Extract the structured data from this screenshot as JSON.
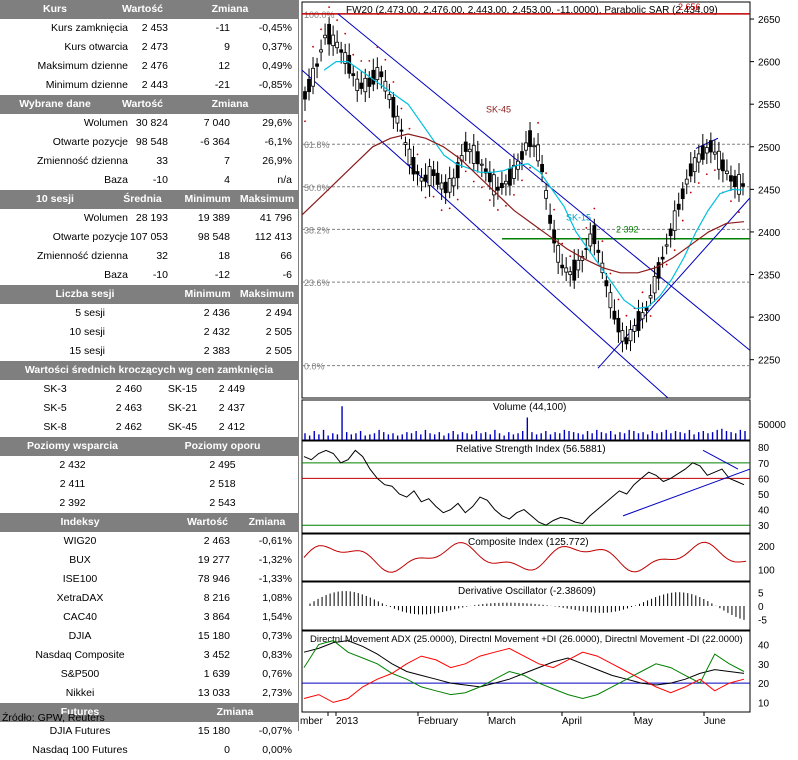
{
  "kursy": {
    "headers": [
      "Kurs",
      "Wartość",
      "Zmiana"
    ],
    "rows": [
      {
        "label": "Kurs zamknięcia",
        "value": "2 453",
        "change": "-11",
        "pct": "-0,45%"
      },
      {
        "label": "Kurs otwarcia",
        "value": "2 473",
        "change": "9",
        "pct": "0,37%"
      },
      {
        "label": "Maksimum dzienne",
        "value": "2 476",
        "change": "12",
        "pct": "0,49%"
      },
      {
        "label": "Minimum dzienne",
        "value": "2 443",
        "change": "-21",
        "pct": "-0,85%"
      }
    ]
  },
  "wybrane": {
    "headers": [
      "Wybrane dane",
      "Wartość",
      "Zmiana"
    ],
    "rows": [
      {
        "label": "Wolumen",
        "value": "30 824",
        "change": "7 040",
        "pct": "29,6%"
      },
      {
        "label": "Otwarte pozycje",
        "value": "98 548",
        "change": "-6 364",
        "pct": "-6,1%"
      },
      {
        "label": "Zmienność dzienna",
        "value": "33",
        "change": "7",
        "pct": "26,9%"
      },
      {
        "label": "Baza",
        "value": "-10",
        "change": "4",
        "pct": "n/a"
      }
    ]
  },
  "sesji10": {
    "headers": [
      "10 sesji",
      "Średnia",
      "Minimum",
      "Maksimum"
    ],
    "rows": [
      {
        "label": "Wolumen",
        "avg": "28 193",
        "min": "19 389",
        "max": "41 796"
      },
      {
        "label": "Otwarte pozycje",
        "avg": "107 053",
        "min": "98 548",
        "max": "112 413"
      },
      {
        "label": "Zmienność dzienna",
        "avg": "32",
        "min": "18",
        "max": "66"
      },
      {
        "label": "Baza",
        "avg": "-10",
        "min": "-12",
        "max": "-6"
      }
    ]
  },
  "liczba": {
    "headers": [
      "Liczba sesji",
      "Minimum",
      "Maksimum"
    ],
    "rows": [
      {
        "label": "5 sesji",
        "min": "2 436",
        "max": "2 494"
      },
      {
        "label": "10 sesji",
        "min": "2 432",
        "max": "2 505"
      },
      {
        "label": "15 sesji",
        "min": "2 383",
        "max": "2 505"
      }
    ]
  },
  "srednie": {
    "header": "Wartości średnich kroczących wg cen zamknięcia",
    "rows": [
      {
        "l1": "SK-3",
        "v1": "2 460",
        "l2": "SK-15",
        "v2": "2 449"
      },
      {
        "l1": "SK-5",
        "v1": "2 463",
        "l2": "SK-21",
        "v2": "2 437"
      },
      {
        "l1": "SK-8",
        "v1": "2 462",
        "l2": "SK-45",
        "v2": "2 412"
      }
    ]
  },
  "poziomy": {
    "headers": [
      "Poziomy wsparcia",
      "Poziomy oporu"
    ],
    "rows": [
      {
        "s": "2 432",
        "o": "2 495"
      },
      {
        "s": "2 411",
        "o": "2 518"
      },
      {
        "s": "2 392",
        "o": "2 543"
      }
    ]
  },
  "indeksy": {
    "headers": [
      "Indeksy",
      "Wartość",
      "Zmiana"
    ],
    "rows": [
      {
        "label": "WIG20",
        "value": "2 463",
        "pct": "-0,61%"
      },
      {
        "label": "BUX",
        "value": "19 277",
        "pct": "-1,32%"
      },
      {
        "label": "ISE100",
        "value": "78 946",
        "pct": "-1,33%"
      },
      {
        "label": "XetraDAX",
        "value": "8 216",
        "pct": "1,08%"
      },
      {
        "label": "CAC40",
        "value": "3 864",
        "pct": "1,54%"
      },
      {
        "label": "DJIA",
        "value": "15 180",
        "pct": "0,73%"
      },
      {
        "label": "Nasdaq Composite",
        "value": "3 452",
        "pct": "0,83%"
      },
      {
        "label": "S&P500",
        "value": "1 639",
        "pct": "0,76%"
      },
      {
        "label": "Nikkei",
        "value": "13 033",
        "pct": "2,73%"
      }
    ]
  },
  "futures": {
    "headers": [
      "Futures",
      "Zmiana"
    ],
    "rows": [
      {
        "label": "DJIA Futures",
        "value": "15 180",
        "pct": "-0,07%"
      },
      {
        "label": "Nasdaq 100 Futures",
        "value": "0",
        "pct": "0,00%"
      }
    ]
  },
  "source": "Źródło: GPW, Reuters",
  "chart_data": [
    {
      "type": "candlestick",
      "title": "FW20 (2,473.00, 2,476.00, 2,443.00, 2,453.00, -11.0000), Parabolic SAR (2,434.09)",
      "y_ticks": [
        2250,
        2300,
        2350,
        2400,
        2450,
        2500,
        2550,
        2600,
        2650
      ],
      "ylim": [
        2205,
        2670
      ],
      "x_labels": [
        "mber",
        "2013",
        "February",
        "March",
        "April",
        "May",
        "June"
      ],
      "fib_levels": [
        {
          "label": "100.0%",
          "value": 2656
        },
        {
          "label": "61.8%",
          "value": 2503
        },
        {
          "label": "50.0%",
          "value": 2453
        },
        {
          "label": "38.2%",
          "value": 2403
        },
        {
          "label": "23.6%",
          "value": 2341
        },
        {
          "label": "0.0%",
          "value": 2243
        }
      ],
      "annotations": [
        {
          "text": "2 656",
          "value": 2656
        },
        {
          "text": "2 392",
          "value": 2392
        },
        {
          "text": "SK-45",
          "value": 2545
        },
        {
          "text": "SK-15",
          "value": 2418
        }
      ],
      "close_path": [
        2560,
        2590,
        2635,
        2620,
        2600,
        2570,
        2575,
        2590,
        2555,
        2520,
        2480,
        2460,
        2470,
        2450,
        2460,
        2500,
        2490,
        2470,
        2450,
        2460,
        2480,
        2510,
        2490,
        2410,
        2360,
        2350,
        2370,
        2400,
        2350,
        2300,
        2270,
        2290,
        2310,
        2350,
        2390,
        2430,
        2470,
        2490,
        2500,
        2480,
        2460,
        2455
      ],
      "sk15": [
        2590,
        2600,
        2600,
        2590,
        2580,
        2570,
        2560,
        2550,
        2530,
        2510,
        2490,
        2480,
        2475,
        2470,
        2470,
        2472,
        2478,
        2480,
        2470,
        2450,
        2430,
        2400,
        2380,
        2360,
        2340,
        2320,
        2310,
        2312,
        2325,
        2345,
        2370,
        2400,
        2425,
        2445,
        2450,
        2449
      ],
      "sk45": [
        2420,
        2440,
        2460,
        2480,
        2500,
        2510,
        2515,
        2510,
        2500,
        2485,
        2465,
        2445,
        2425,
        2410,
        2395,
        2380,
        2368,
        2358,
        2352,
        2352,
        2358,
        2370,
        2385,
        2400,
        2410,
        2412
      ]
    },
    {
      "type": "bar",
      "title": "Volume (44,100)",
      "y_ticks": [
        50000
      ],
      "values": [
        6,
        4,
        8,
        5,
        9,
        4,
        6,
        5,
        30,
        7,
        5,
        6,
        8,
        4,
        5,
        6,
        9,
        7,
        5,
        6,
        4,
        5,
        7,
        6,
        8,
        5,
        9,
        6,
        5,
        7,
        4,
        6,
        8,
        5,
        7,
        6,
        5,
        8,
        6,
        7,
        5,
        9,
        6,
        4,
        7,
        5,
        6,
        8,
        20,
        7,
        5,
        6,
        8,
        5,
        7,
        6,
        9,
        8,
        7,
        6,
        5,
        8,
        6,
        9,
        7,
        6,
        8,
        5,
        7,
        6,
        9,
        8,
        6,
        7,
        5,
        8,
        6,
        7,
        9,
        6,
        8,
        7,
        6,
        9,
        5,
        7,
        8,
        6,
        7,
        9,
        10,
        8,
        7,
        6,
        9,
        8
      ]
    },
    {
      "type": "line",
      "title": "Relative Strength Index (56.5881)",
      "y_ticks": [
        30,
        40,
        50,
        60,
        70,
        80
      ],
      "ylim": [
        25,
        84
      ],
      "levels": [
        70,
        60,
        30
      ],
      "values": [
        74,
        72,
        76,
        78,
        76,
        70,
        72,
        78,
        74,
        66,
        60,
        56,
        55,
        50,
        48,
        52,
        45,
        47,
        42,
        38,
        40,
        44,
        38,
        42,
        48,
        46,
        40,
        36,
        34,
        38,
        40,
        36,
        32,
        30,
        33,
        35,
        34,
        32,
        31,
        36,
        40,
        44,
        48,
        52,
        50,
        56,
        60,
        64,
        62,
        58,
        60,
        63,
        66,
        70,
        68,
        62,
        64,
        66,
        60,
        58,
        56
      ]
    },
    {
      "type": "line",
      "title": "Composite Index (125.772)",
      "y_ticks": [
        100,
        200
      ]
    },
    {
      "type": "bar",
      "title": "Derivative Oscillator (-2.38609)",
      "y_ticks": [
        -5,
        0,
        5
      ]
    },
    {
      "type": "line",
      "title": "Directnl Movement ADX (25.0000), Directnl Movement +DI (26.0000), Directnl Movement -DI (22.0000)",
      "y_ticks": [
        10,
        20,
        30,
        40
      ],
      "ylim": [
        5,
        47
      ],
      "series": [
        {
          "name": "Directnl Movement ADX",
          "color": "#000000",
          "values": [
            36,
            38,
            41,
            42,
            39,
            35,
            30,
            26,
            24,
            22,
            20,
            19,
            18,
            20,
            22,
            25,
            28,
            31,
            33,
            30,
            27,
            24,
            22,
            20,
            19,
            20,
            22,
            25,
            27,
            26,
            25
          ]
        },
        {
          "name": "Directnl Movement +DI",
          "color": "#008000",
          "values": [
            28,
            40,
            42,
            36,
            33,
            30,
            25,
            22,
            18,
            16,
            14,
            15,
            18,
            22,
            26,
            24,
            20,
            17,
            14,
            12,
            14,
            18,
            22,
            26,
            30,
            28,
            24,
            20,
            35,
            30,
            26
          ]
        },
        {
          "name": "Directnl Movement -DI",
          "color": "#ff0000",
          "values": [
            12,
            14,
            10,
            12,
            18,
            22,
            25,
            30,
            34,
            32,
            28,
            30,
            34,
            36,
            38,
            34,
            30,
            28,
            32,
            36,
            34,
            30,
            26,
            22,
            18,
            15,
            18,
            22,
            16,
            20,
            22
          ]
        }
      ]
    }
  ],
  "colors": {
    "header_bg": "#7f7f7f",
    "header_text": "#ffffff",
    "price_line": "#000000",
    "sk15": "#00c0e0",
    "sk45": "#8b1a1a",
    "channel": "#0000c0",
    "grid": "#808080"
  }
}
